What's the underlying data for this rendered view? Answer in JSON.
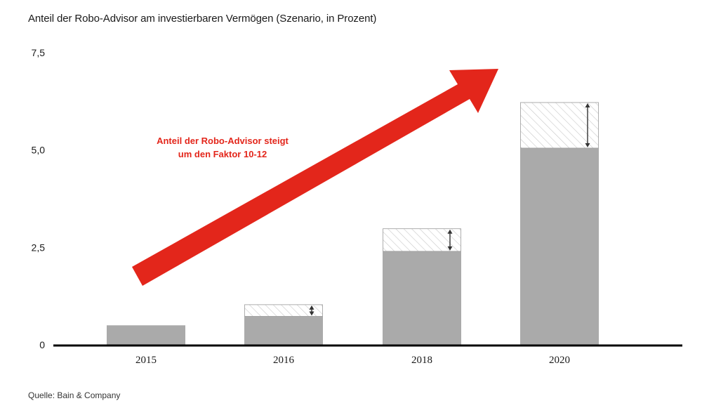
{
  "title": "Anteil der Robo-Advisor am investierbaren Vermögen (Szenario, in Prozent)",
  "source": "Quelle: Bain & Company",
  "colors": {
    "bar": "#aaaaaa",
    "range_hatch": "#c8c8c8",
    "arrow": "#e3261b",
    "axis": "#000000",
    "annotation_text": "#e3261b"
  },
  "chart_data": {
    "type": "bar",
    "title": "Anteil der Robo-Advisor am investierbaren Vermögen (Szenario, in Prozent)",
    "categories": [
      "2015",
      "2016",
      "2018",
      "2020"
    ],
    "series": [
      {
        "values": [
          0.5,
          0.73,
          2.4,
          5.05
        ]
      },
      {
        "values": [
          null,
          1.03,
          2.98,
          6.22
        ]
      }
    ],
    "yticks": [
      "0",
      "2,5",
      "5,0",
      "7,5"
    ],
    "ytick_values": [
      0,
      2.5,
      5.0,
      7.5
    ],
    "ylim": [
      0,
      7.5
    ],
    "xlabel": "",
    "ylabel": "",
    "grid": false,
    "annotation": {
      "lines": [
        "Anteil der Robo-Advisor steigt",
        "um den Faktor 10-12"
      ]
    }
  }
}
